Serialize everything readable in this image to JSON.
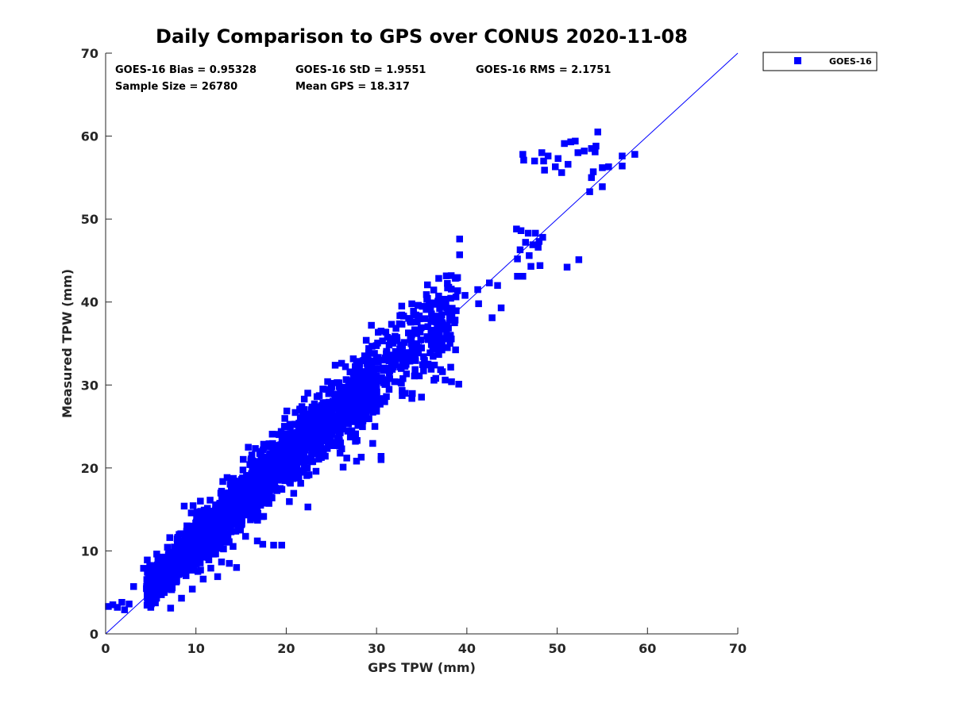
{
  "chart_data": {
    "type": "scatter",
    "title": "Daily Comparison to GPS over CONUS 2020-11-08",
    "xlabel": "GPS TPW (mm)",
    "ylabel": "Measured TPW (mm)",
    "xlim": [
      0,
      70
    ],
    "ylim": [
      0,
      70
    ],
    "xticks": [
      "0",
      "10",
      "20",
      "30",
      "40",
      "50",
      "60",
      "70"
    ],
    "yticks": [
      "0",
      "10",
      "20",
      "30",
      "40",
      "50",
      "60",
      "70"
    ],
    "grid": false,
    "legend": {
      "position": "outside-top-right",
      "entries": [
        "GOES-16"
      ]
    },
    "reference_line": {
      "from": [
        0,
        0
      ],
      "to": [
        70,
        70
      ],
      "color": "#0000ff"
    },
    "stats": {
      "bias": "GOES-16 Bias = 0.95328",
      "std": "GOES-16 StD = 1.9551",
      "rms": "GOES-16 RMS = 2.1751",
      "sample": "Sample Size = 26780",
      "mean": "Mean GPS = 18.317"
    },
    "series": [
      {
        "name": "GOES-16",
        "color": "#0000ff",
        "marker": "square",
        "sample_size": 26780,
        "outliers": [
          [
            0.3,
            3.3
          ],
          [
            0.8,
            3.5
          ],
          [
            1.3,
            3.2
          ],
          [
            1.8,
            3.8
          ],
          [
            2.1,
            2.9
          ],
          [
            2.6,
            3.6
          ],
          [
            54.5,
            60.5
          ],
          [
            52.0,
            59.4
          ],
          [
            50.8,
            59.1
          ],
          [
            46.2,
            57.8
          ],
          [
            46.3,
            57.1
          ],
          [
            47.5,
            57.0
          ],
          [
            48.3,
            58.0
          ],
          [
            49.0,
            57.6
          ],
          [
            53.0,
            58.2
          ],
          [
            53.8,
            58.5
          ],
          [
            54.2,
            58.1
          ],
          [
            55.0,
            56.2
          ],
          [
            55.7,
            56.3
          ],
          [
            57.2,
            57.6
          ],
          [
            58.6,
            57.8
          ],
          [
            57.2,
            56.4
          ],
          [
            54.0,
            55.7
          ],
          [
            53.8,
            55.0
          ],
          [
            53.6,
            53.3
          ],
          [
            55.0,
            53.9
          ],
          [
            50.5,
            55.6
          ],
          [
            51.2,
            56.6
          ],
          [
            49.8,
            56.3
          ],
          [
            50.1,
            57.3
          ],
          [
            48.5,
            57.0
          ],
          [
            52.3,
            58.0
          ],
          [
            51.5,
            59.3
          ],
          [
            54.3,
            58.8
          ],
          [
            48.6,
            55.9
          ],
          [
            39.2,
            47.6
          ],
          [
            39.2,
            45.7
          ],
          [
            45.5,
            48.8
          ],
          [
            46.0,
            48.6
          ],
          [
            46.8,
            48.3
          ],
          [
            47.6,
            48.3
          ],
          [
            48.0,
            47.3
          ],
          [
            47.3,
            46.9
          ],
          [
            46.5,
            47.2
          ],
          [
            45.9,
            46.3
          ],
          [
            45.6,
            45.2
          ],
          [
            46.9,
            45.6
          ],
          [
            47.1,
            44.3
          ],
          [
            48.1,
            44.4
          ],
          [
            46.2,
            43.1
          ],
          [
            45.6,
            43.1
          ],
          [
            51.1,
            44.2
          ],
          [
            52.4,
            45.1
          ],
          [
            47.9,
            46.6
          ],
          [
            48.4,
            47.8
          ],
          [
            42.8,
            38.1
          ],
          [
            43.8,
            39.3
          ],
          [
            41.3,
            39.8
          ],
          [
            42.5,
            42.3
          ],
          [
            43.4,
            42.0
          ],
          [
            39.1,
            30.1
          ],
          [
            38.3,
            30.4
          ],
          [
            37.6,
            30.6
          ],
          [
            37.3,
            31.6
          ],
          [
            30.5,
            21.0
          ],
          [
            30.5,
            21.4
          ],
          [
            28.3,
            21.3
          ],
          [
            26.3,
            20.1
          ],
          [
            23.3,
            19.6
          ],
          [
            26.7,
            21.2
          ],
          [
            22.4,
            15.3
          ],
          [
            19.5,
            10.7
          ],
          [
            18.6,
            10.7
          ],
          [
            17.4,
            10.8
          ],
          [
            16.8,
            11.2
          ],
          [
            14.5,
            8.0
          ],
          [
            13.7,
            8.5
          ],
          [
            12.4,
            6.9
          ],
          [
            10.8,
            6.6
          ],
          [
            9.6,
            5.4
          ],
          [
            8.4,
            4.3
          ],
          [
            7.2,
            3.1
          ],
          [
            5.0,
            3.2
          ],
          [
            3.1,
            5.7
          ],
          [
            4.2,
            7.9
          ],
          [
            15.8,
            22.5
          ],
          [
            10.5,
            16.0
          ],
          [
            8.7,
            15.4
          ],
          [
            7.1,
            11.6
          ],
          [
            21.5,
            27.1
          ],
          [
            22.0,
            28.3
          ],
          [
            25.0,
            30.2
          ],
          [
            30.5,
            36.5
          ],
          [
            33.0,
            38.3
          ],
          [
            35.5,
            39.1
          ],
          [
            37.5,
            40.3
          ],
          [
            36.2,
            39.9
          ],
          [
            34.5,
            37.6
          ],
          [
            39.8,
            40.8
          ],
          [
            41.2,
            41.5
          ]
        ]
      }
    ]
  }
}
